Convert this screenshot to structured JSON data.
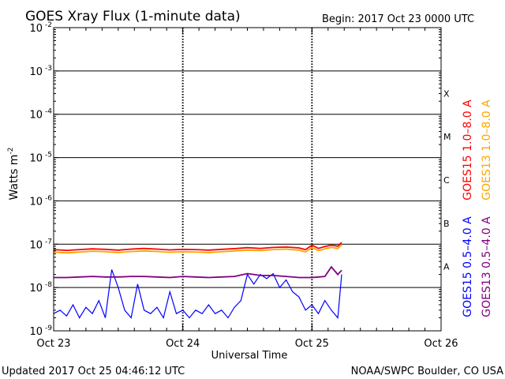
{
  "chart_data": {
    "type": "line",
    "title": "GOES Xray Flux (1-minute data)",
    "begin_label": "Begin:  2017 Oct 23 0000 UTC",
    "ylabel_main": "Watts m",
    "ylabel_exp": "-2",
    "xlabel": "Universal Time",
    "y_scale": "log",
    "ylim": [
      1e-09,
      0.01
    ],
    "xlim": [
      0,
      3
    ],
    "x_ticks": [
      {
        "x": 0,
        "label": "Oct 23"
      },
      {
        "x": 1,
        "label": "Oct 24"
      },
      {
        "x": 2,
        "label": "Oct 25"
      },
      {
        "x": 3,
        "label": "Oct 26"
      }
    ],
    "y_ticks": [
      {
        "exp": -2,
        "label": "-2"
      },
      {
        "exp": -3,
        "label": "-3"
      },
      {
        "exp": -4,
        "label": "-4"
      },
      {
        "exp": -5,
        "label": "-5"
      },
      {
        "exp": -6,
        "label": "-6"
      },
      {
        "exp": -7,
        "label": "-7"
      },
      {
        "exp": -8,
        "label": "-8"
      },
      {
        "exp": -9,
        "label": "-9"
      }
    ],
    "flare_classes": [
      {
        "label": "X",
        "exp": -3.5
      },
      {
        "label": "M",
        "exp": -4.5
      },
      {
        "label": "C",
        "exp": -5.5
      },
      {
        "label": "B",
        "exp": -6.5
      },
      {
        "label": "A",
        "exp": -7.5
      }
    ],
    "grid": "horizontal lines at each decade; dashed vertical at day boundaries",
    "legend": [
      {
        "label": "GOES15 1.0–8.0 A",
        "color": "#ff0000"
      },
      {
        "label": "GOES13 1.0–8.0 A",
        "color": "#ffa500"
      },
      {
        "label": "GOES15 0.5–4.0 A",
        "color": "#0000ff"
      },
      {
        "label": "GOES13 0.5–4.0 A",
        "color": "#800080"
      }
    ],
    "series": [
      {
        "name": "GOES15 1.0–8.0 A",
        "color": "#ff0000",
        "x": [
          0,
          0.1,
          0.2,
          0.3,
          0.4,
          0.5,
          0.6,
          0.7,
          0.8,
          0.9,
          1.0,
          1.1,
          1.2,
          1.3,
          1.4,
          1.5,
          1.6,
          1.7,
          1.8,
          1.9,
          1.95,
          2.0,
          2.05,
          2.1,
          2.15,
          2.2,
          2.23
        ],
        "y": [
          7.5e-08,
          7.2e-08,
          7.5e-08,
          7.8e-08,
          7.6e-08,
          7.3e-08,
          7.7e-08,
          8e-08,
          7.7e-08,
          7.4e-08,
          7.6e-08,
          7.5e-08,
          7.3e-08,
          7.6e-08,
          7.9e-08,
          8.3e-08,
          8e-08,
          8.4e-08,
          8.6e-08,
          8.2e-08,
          7.5e-08,
          9.5e-08,
          8e-08,
          8.8e-08,
          9.5e-08,
          9e-08,
          1.1e-07
        ]
      },
      {
        "name": "GOES13 1.0–8.0 A",
        "color": "#ffa500",
        "x": [
          0,
          0.1,
          0.2,
          0.3,
          0.4,
          0.5,
          0.6,
          0.7,
          0.8,
          0.9,
          1.0,
          1.1,
          1.2,
          1.3,
          1.4,
          1.5,
          1.6,
          1.7,
          1.8,
          1.9,
          1.95,
          2.0,
          2.05,
          2.1,
          2.15,
          2.2,
          2.23
        ],
        "y": [
          6.6e-08,
          6.3e-08,
          6.6e-08,
          6.9e-08,
          6.7e-08,
          6.4e-08,
          6.8e-08,
          7e-08,
          6.8e-08,
          6.5e-08,
          6.7e-08,
          6.6e-08,
          6.4e-08,
          6.7e-08,
          7e-08,
          7.3e-08,
          7.1e-08,
          7.5e-08,
          7.7e-08,
          7.3e-08,
          6.6e-08,
          8.4e-08,
          7.1e-08,
          7.8e-08,
          8.5e-08,
          8e-08,
          9.8e-08
        ]
      },
      {
        "name": "GOES15 0.5–4.0 A",
        "color": "#0000ff",
        "x": [
          0,
          0.05,
          0.1,
          0.15,
          0.2,
          0.25,
          0.3,
          0.35,
          0.4,
          0.45,
          0.5,
          0.55,
          0.6,
          0.65,
          0.7,
          0.75,
          0.8,
          0.85,
          0.9,
          0.95,
          1.0,
          1.05,
          1.1,
          1.15,
          1.2,
          1.25,
          1.3,
          1.35,
          1.4,
          1.45,
          1.5,
          1.55,
          1.6,
          1.65,
          1.7,
          1.75,
          1.8,
          1.85,
          1.9,
          1.95,
          2.0,
          2.05,
          2.1,
          2.15,
          2.2,
          2.23
        ],
        "y": [
          2.5e-09,
          3e-09,
          2.2e-09,
          4e-09,
          2e-09,
          3.5e-09,
          2.5e-09,
          5e-09,
          2e-09,
          2.6e-08,
          1e-08,
          3e-09,
          2e-09,
          1.2e-08,
          3e-09,
          2.5e-09,
          3.5e-09,
          2e-09,
          8e-09,
          2.5e-09,
          3e-09,
          2e-09,
          3e-09,
          2.5e-09,
          4e-09,
          2.5e-09,
          3e-09,
          2e-09,
          3.5e-09,
          5e-09,
          2e-08,
          1.2e-08,
          2e-08,
          1.6e-08,
          2.1e-08,
          1e-08,
          1.5e-08,
          8e-09,
          6e-09,
          3e-09,
          4e-09,
          2.5e-09,
          5e-09,
          3e-09,
          2e-09,
          2e-08
        ]
      },
      {
        "name": "GOES13 0.5–4.0 A",
        "color": "#800080",
        "x": [
          0,
          0.1,
          0.2,
          0.3,
          0.4,
          0.5,
          0.6,
          0.7,
          0.8,
          0.9,
          1.0,
          1.1,
          1.2,
          1.3,
          1.4,
          1.5,
          1.55,
          1.6,
          1.7,
          1.8,
          1.9,
          2.0,
          2.05,
          2.1,
          2.15,
          2.2,
          2.23
        ],
        "y": [
          1.7e-08,
          1.7e-08,
          1.75e-08,
          1.8e-08,
          1.75e-08,
          1.75e-08,
          1.8e-08,
          1.8e-08,
          1.75e-08,
          1.7e-08,
          1.8e-08,
          1.75e-08,
          1.7e-08,
          1.75e-08,
          1.8e-08,
          2.1e-08,
          2e-08,
          1.9e-08,
          1.9e-08,
          1.8e-08,
          1.7e-08,
          1.7e-08,
          1.75e-08,
          1.8e-08,
          3e-08,
          2e-08,
          2.5e-08
        ]
      }
    ]
  },
  "footer": {
    "updated": "Updated 2017 Oct 25 04:46:12 UTC",
    "credit": "NOAA/SWPC Boulder, CO USA"
  }
}
